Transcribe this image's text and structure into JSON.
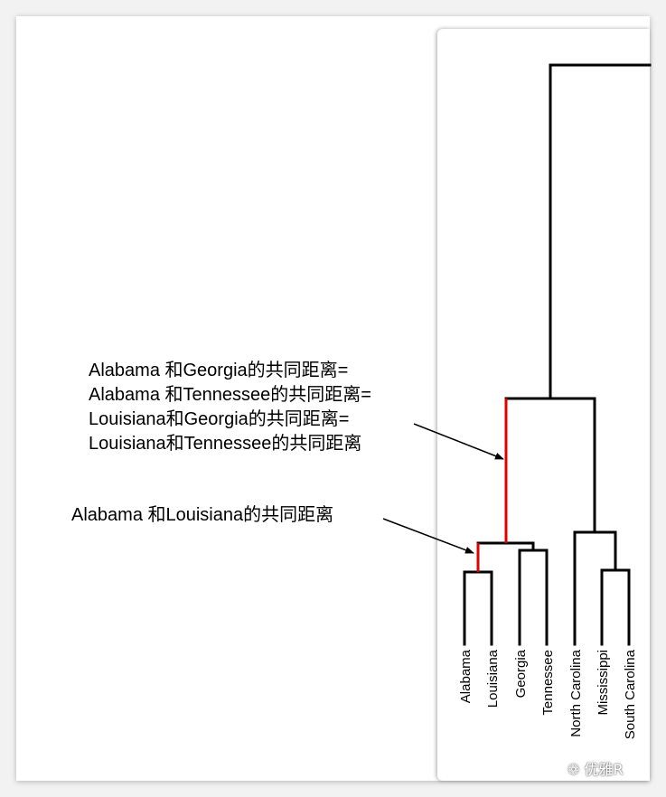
{
  "leaves": [
    {
      "name": "Alabama"
    },
    {
      "name": "Louisiana"
    },
    {
      "name": "Georgia"
    },
    {
      "name": "Tennessee"
    },
    {
      "name": "North Carolina"
    },
    {
      "name": "Mississippi"
    },
    {
      "name": "South Carolina"
    }
  ],
  "annotations": {
    "top": [
      "Alabama 和Georgia的共同距离=",
      "Alabama 和Tennessee的共同距离=",
      "Louisiana和Georgia的共同距离=",
      "Louisiana和Tennessee的共同距离"
    ],
    "bottom": "Alabama 和Louisiana的共同距离"
  },
  "colors": {
    "highlight": "#e00000",
    "line": "#000000"
  },
  "watermark": "优雅R"
}
